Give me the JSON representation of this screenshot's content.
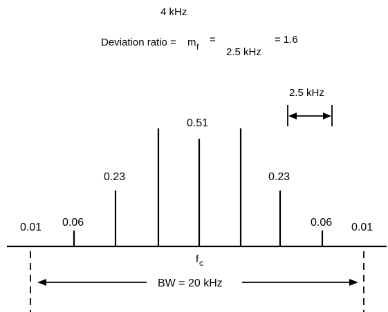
{
  "equation": {
    "lhs": "Deviation ratio = ",
    "symbol_main": "m",
    "symbol_sub": "f",
    "equals1": "=",
    "numerator": "4 kHz",
    "denominator": "2.5 kHz",
    "result": "= 1.6"
  },
  "spacing_annotation": "2.5 kHz",
  "carrier_label_main": "f",
  "carrier_label_sub": "c",
  "bandwidth_label": "BW = 20 kHz",
  "spectrum": {
    "amplitude_labels_left": [
      "0.01",
      "0.06",
      "0.23"
    ],
    "center_label": "0.51",
    "amplitude_labels_right": [
      "0.23",
      "0.06",
      "0.01"
    ],
    "lines": [
      {
        "offset": -4,
        "amplitude": 0.01,
        "label": "0.01"
      },
      {
        "offset": -3,
        "amplitude": 0.06,
        "label": "0.06"
      },
      {
        "offset": -2,
        "amplitude": 0.23,
        "label": "0.23"
      },
      {
        "offset": -1,
        "amplitude": 0.51,
        "label": ""
      },
      {
        "offset": 0,
        "amplitude": 0.51,
        "label": "0.51"
      },
      {
        "offset": 1,
        "amplitude": 0.51,
        "label": ""
      },
      {
        "offset": 2,
        "amplitude": 0.23,
        "label": "0.23"
      },
      {
        "offset": 3,
        "amplitude": 0.06,
        "label": "0.06"
      },
      {
        "offset": 4,
        "amplitude": 0.01,
        "label": "0.01"
      }
    ]
  }
}
